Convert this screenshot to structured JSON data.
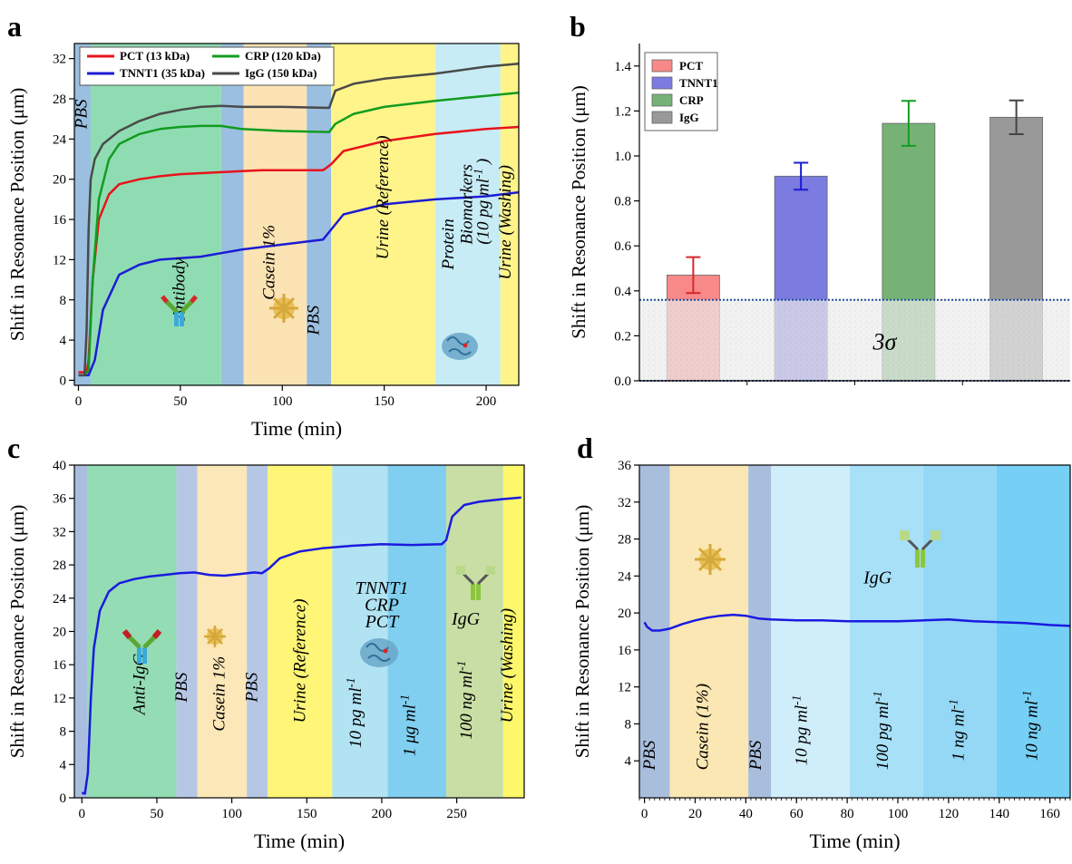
{
  "chart_data": [
    {
      "panel": "a",
      "type": "line",
      "xlabel": "Time (min)",
      "ylabel": "Shift in Resonance Position (μm)",
      "xlim": [
        -2,
        216
      ],
      "ylim": [
        -0.5,
        33.5
      ],
      "xticks": [
        0,
        50,
        100,
        150,
        200
      ],
      "yticks": [
        0,
        4,
        8,
        12,
        16,
        20,
        24,
        28,
        32
      ],
      "legend_position": "top-left",
      "regions": [
        {
          "x0": -2,
          "x1": 6,
          "color": "#9bbfe0",
          "label": "PBS",
          "lx": 4,
          "ly": 25,
          "vertical": true
        },
        {
          "x0": 6,
          "x1": 70,
          "color": "#8fdcb3",
          "label": "Antibody",
          "lx": 52,
          "ly": 6,
          "vertical": true
        },
        {
          "x0": 70,
          "x1": 81,
          "color": "#9bbfe0",
          "label": "",
          "vertical": true
        },
        {
          "x0": 81,
          "x1": 112,
          "color": "#fbe3b3",
          "label": "Casein 1%",
          "lx": 96,
          "ly": 8,
          "vertical": true
        },
        {
          "x0": 112,
          "x1": 124,
          "color": "#9bbfe0",
          "label": "PBS",
          "lx": 118,
          "ly": 4.5,
          "vertical": true
        },
        {
          "x0": 124,
          "x1": 175,
          "color": "#fff48a",
          "label": "Urine (Reference)",
          "lx": 152,
          "ly": 12,
          "vertical": true
        },
        {
          "x0": 175,
          "x1": 207,
          "color": "#c7ecf5",
          "label": "Protein",
          "lx": 184,
          "ly": 11,
          "vertical": true
        },
        {
          "x0": 207,
          "x1": 216,
          "color": "#fff48a",
          "label": "Urine (Washing)",
          "lx": 212,
          "ly": 10,
          "vertical": true
        }
      ],
      "extra_labels": [
        {
          "text": "Biomarkers",
          "x": 193,
          "ly": 13.5
        },
        {
          "text": "(10 pg ml-1 )",
          "x": 201,
          "ly": 13.5
        }
      ],
      "series": [
        {
          "name": "PCT (13 kDa)",
          "color": "#e8131b",
          "x": [
            0,
            4,
            5,
            7,
            10,
            15,
            20,
            30,
            40,
            50,
            60,
            70,
            80,
            90,
            100,
            110,
            120,
            124,
            130,
            150,
            175,
            200,
            216
          ],
          "y": [
            0.8,
            0.8,
            2,
            10,
            16,
            18.5,
            19.5,
            20,
            20.3,
            20.5,
            20.6,
            20.7,
            20.8,
            20.9,
            20.9,
            20.9,
            20.9,
            21.5,
            22.8,
            23.8,
            24.5,
            25,
            25.2
          ]
        },
        {
          "name": "TNNT1 (35 kDa)",
          "color": "#1c1cd4",
          "x": [
            0,
            5,
            8,
            12,
            20,
            30,
            40,
            60,
            80,
            100,
            120,
            124,
            130,
            150,
            175,
            200,
            216
          ],
          "y": [
            0.5,
            0.5,
            2,
            7,
            10.5,
            11.5,
            12,
            12.3,
            13,
            13.5,
            14,
            15,
            16.5,
            17.5,
            18,
            18.3,
            18.7
          ]
        },
        {
          "name": "CRP (120 kDa)",
          "color": "#129c1f",
          "x": [
            0,
            3,
            5,
            7,
            10,
            15,
            20,
            30,
            40,
            50,
            60,
            70,
            80,
            100,
            123,
            126,
            135,
            150,
            175,
            200,
            216
          ],
          "y": [
            0.5,
            0.5,
            1,
            10,
            18,
            22,
            23.5,
            24.5,
            25,
            25.2,
            25.3,
            25.3,
            25,
            24.8,
            24.7,
            25.5,
            26.5,
            27.2,
            27.8,
            28.3,
            28.6
          ]
        },
        {
          "name": "IgG (150 kDa)",
          "color": "#4a4a4a",
          "x": [
            0,
            3,
            4,
            5,
            6,
            8,
            12,
            20,
            30,
            40,
            50,
            60,
            70,
            80,
            100,
            123,
            126,
            135,
            150,
            175,
            200,
            216
          ],
          "y": [
            0.5,
            0.5,
            5,
            15,
            20,
            22,
            23.5,
            24.8,
            25.8,
            26.5,
            26.9,
            27.2,
            27.3,
            27.2,
            27.2,
            27.1,
            28.8,
            29.5,
            30,
            30.5,
            31.2,
            31.5
          ]
        }
      ]
    },
    {
      "panel": "b",
      "type": "bar",
      "ylabel": "Shift in Resonance Position (μm)",
      "categories": [
        "PCT",
        "TNNT1",
        "CRP",
        "IgG"
      ],
      "values": [
        0.47,
        0.91,
        1.145,
        1.172
      ],
      "errors": [
        0.08,
        0.06,
        0.1,
        0.075
      ],
      "colors": [
        "#f88989",
        "#7b7be0",
        "#76b276",
        "#999999"
      ],
      "ylim": [
        0,
        1.5
      ],
      "yticks": [
        0.0,
        0.2,
        0.4,
        0.6,
        0.8,
        1.0,
        1.2,
        1.4
      ],
      "threshold": 0.36,
      "threshold_label": "3σ",
      "legend_position": "top-left"
    },
    {
      "panel": "c",
      "type": "line",
      "xlabel": "Time (min)",
      "ylabel": "Shift in Resonance Position (μm)",
      "xlim": [
        -5,
        295
      ],
      "ylim": [
        0,
        40
      ],
      "xticks": [
        0,
        50,
        100,
        150,
        200,
        250
      ],
      "yticks": [
        0,
        4,
        8,
        12,
        16,
        20,
        24,
        28,
        32,
        36,
        40
      ],
      "regions": [
        {
          "x0": -5,
          "x1": 4,
          "color": "#a9bede",
          "label": "",
          "vertical": true
        },
        {
          "x0": 4,
          "x1": 63,
          "color": "#93dcb4",
          "label": "Anti-IgG",
          "lx": 42,
          "ly": 10,
          "vertical": true
        },
        {
          "x0": 63,
          "x1": 77,
          "color": "#b6c7e6",
          "label": "PBS",
          "lx": 70,
          "ly": 11.5,
          "vertical": true
        },
        {
          "x0": 77,
          "x1": 110,
          "color": "#fbe7b7",
          "label": "Casein 1%",
          "lx": 95,
          "ly": 8,
          "vertical": true
        },
        {
          "x0": 110,
          "x1": 124,
          "color": "#b6c7e6",
          "label": "PBS",
          "lx": 117,
          "ly": 11.5,
          "vertical": true
        },
        {
          "x0": 124,
          "x1": 167,
          "color": "#fff576",
          "label": "Urine (Reference)",
          "lx": 149,
          "ly": 9,
          "vertical": true
        },
        {
          "x0": 167,
          "x1": 204,
          "color": "#b2e3f3",
          "label": "10 pg ml-1",
          "lx": 186,
          "ly": 6,
          "vertical": true
        },
        {
          "x0": 204,
          "x1": 243,
          "color": "#80cff0",
          "label": "1 μg ml-1",
          "lx": 222,
          "ly": 5,
          "vertical": true
        },
        {
          "x0": 243,
          "x1": 281,
          "color": "#c9dea4",
          "label": "100 ng ml-1",
          "lx": 260,
          "ly": 7,
          "vertical": true
        },
        {
          "x0": 281,
          "x1": 295,
          "color": "#fdf86a",
          "label": "Urine (Washing)",
          "lx": 287,
          "ly": 9,
          "vertical": true
        }
      ],
      "labels": [
        {
          "text": "TNNT1",
          "x": 200,
          "y": 24.5
        },
        {
          "text": "CRP",
          "x": 200,
          "y": 22.5
        },
        {
          "text": "PCT",
          "x": 200,
          "y": 20.5
        },
        {
          "text": "IgG",
          "x": 256,
          "y": 20.8
        }
      ],
      "series": [
        {
          "name": "",
          "color": "#1a1ae0",
          "x": [
            0,
            2,
            4,
            6,
            8,
            12,
            18,
            25,
            35,
            45,
            55,
            65,
            75,
            85,
            95,
            105,
            115,
            120,
            125,
            132,
            145,
            160,
            180,
            200,
            220,
            240,
            243,
            247,
            255,
            265,
            280,
            293
          ],
          "y": [
            0.6,
            0.5,
            3,
            12,
            18,
            22.5,
            24.8,
            25.8,
            26.3,
            26.6,
            26.8,
            27,
            27.1,
            26.8,
            26.7,
            26.9,
            27.1,
            27,
            27.6,
            28.8,
            29.6,
            30,
            30.3,
            30.5,
            30.4,
            30.5,
            31,
            33.8,
            35.2,
            35.6,
            35.9,
            36.1
          ]
        }
      ]
    },
    {
      "panel": "d",
      "type": "line",
      "xlabel": "Time (min)",
      "ylabel": "Shift in Resonance Position (μm)",
      "xlim": [
        -2,
        168
      ],
      "ylim": [
        0,
        36
      ],
      "xticks": [
        0,
        20,
        40,
        60,
        80,
        100,
        120,
        140,
        160
      ],
      "yticks": [
        4,
        8,
        12,
        16,
        20,
        24,
        28,
        32,
        36
      ],
      "regions": [
        {
          "x0": -2,
          "x1": 10,
          "color": "#a9bedc",
          "label": "PBS",
          "lx": 4,
          "ly": 3,
          "vertical": true
        },
        {
          "x0": 10,
          "x1": 41,
          "color": "#fbe7b3",
          "label": "Casein (1%)",
          "lx": 25,
          "ly": 3,
          "vertical": true
        },
        {
          "x0": 41,
          "x1": 50,
          "color": "#a9bedc",
          "label": "PBS",
          "lx": 46,
          "ly": 3,
          "vertical": true
        },
        {
          "x0": 50,
          "x1": 81,
          "color": "#d0eefa",
          "label": "10 pg ml-1",
          "lx": 64,
          "ly": 3.5,
          "vertical": true
        },
        {
          "x0": 81,
          "x1": 110,
          "color": "#a8e0f8",
          "label": "100 pg ml-1",
          "lx": 96,
          "ly": 3,
          "vertical": true
        },
        {
          "x0": 110,
          "x1": 139,
          "color": "#94d8f6",
          "label": "1 ng ml-1",
          "lx": 126,
          "ly": 4,
          "vertical": true
        },
        {
          "x0": 139,
          "x1": 168,
          "color": "#76d0f5",
          "label": "10 ng ml-1",
          "lx": 155,
          "ly": 4,
          "vertical": true
        }
      ],
      "labels": [
        {
          "text": "IgG",
          "x": 92,
          "y": 23.2
        }
      ],
      "series": [
        {
          "name": "",
          "color": "#1a1ae0",
          "x": [
            0,
            1,
            3,
            6,
            10,
            15,
            20,
            25,
            30,
            35,
            40,
            45,
            50,
            60,
            70,
            80,
            90,
            100,
            110,
            120,
            130,
            140,
            150,
            160,
            168
          ],
          "y": [
            19,
            18.5,
            18.1,
            18.1,
            18.3,
            18.8,
            19.2,
            19.5,
            19.7,
            19.8,
            19.7,
            19.4,
            19.3,
            19.2,
            19.2,
            19.1,
            19.1,
            19.1,
            19.2,
            19.3,
            19.1,
            19,
            18.9,
            18.7,
            18.6
          ]
        }
      ]
    }
  ],
  "panel_letters": {
    "a": "a",
    "b": "b",
    "c": "c",
    "d": "d"
  }
}
